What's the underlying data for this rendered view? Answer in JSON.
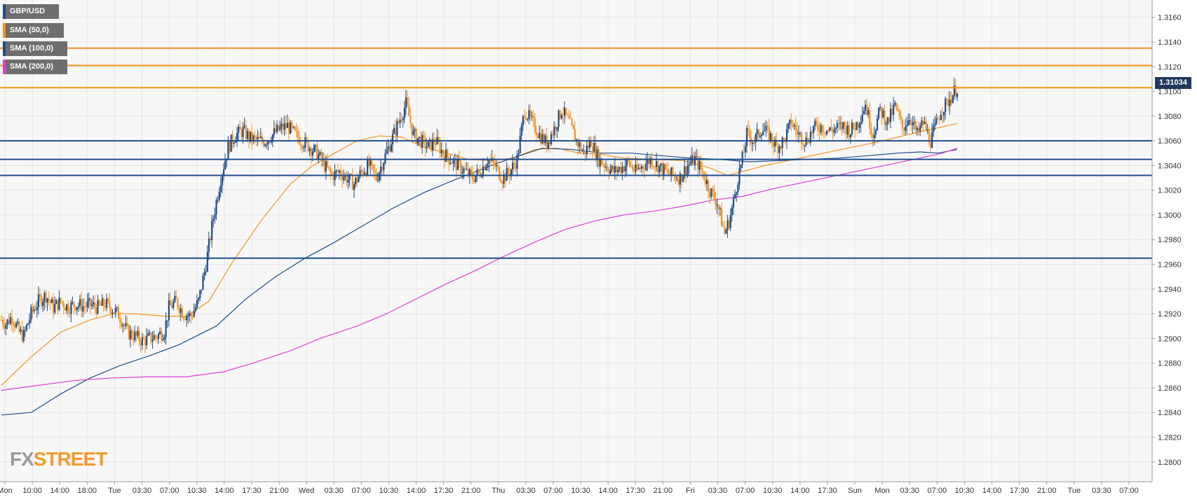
{
  "legend": [
    {
      "label": "GBP/USD",
      "color": "#1f4e8c"
    },
    {
      "label": "SMA (50,0)",
      "color": "#f7931e"
    },
    {
      "label": "SMA (100,0)",
      "color": "#1f4e8c"
    },
    {
      "label": "SMA (200,0)",
      "color": "#e23bdc"
    }
  ],
  "price_tag": "1.31034",
  "logo": {
    "fx": "FX",
    "street": "STREET"
  },
  "chart_data": {
    "type": "candlestick",
    "symbol": "GBP/USD",
    "ylim": [
      1.2784,
      1.3174
    ],
    "yticks": [
      "1.3160",
      "1.3140",
      "1.3120",
      "1.3100",
      "1.3080",
      "1.3060",
      "1.3040",
      "1.3020",
      "1.3000",
      "1.2980",
      "1.2960",
      "1.2940",
      "1.2920",
      "1.2900",
      "1.2880",
      "1.2860",
      "1.2840",
      "1.2820",
      "1.2800"
    ],
    "xticks": [
      "Mon",
      "10:00",
      "14:00",
      "18:00",
      "Tue",
      "03:30",
      "07:00",
      "10:30",
      "14:00",
      "17:30",
      "21:00",
      "Wed",
      "03:30",
      "07:00",
      "10:30",
      "14:00",
      "17:30",
      "21:00",
      "Thu",
      "03:30",
      "07:00",
      "10:30",
      "14:00",
      "17:30",
      "21:00",
      "Fri",
      "03:30",
      "07:00",
      "10:30",
      "14:00",
      "17:30",
      "Sun",
      "Mon",
      "03:30",
      "07:00",
      "10:30",
      "14:00",
      "17:30",
      "21:00",
      "Tue",
      "03:30",
      "07:00"
    ],
    "grid": true,
    "last_price": 1.31034,
    "horizontal_levels": [
      {
        "value": 1.3135,
        "color": "#f7931e"
      },
      {
        "value": 1.3121,
        "color": "#f7931e"
      },
      {
        "value": 1.3103,
        "color": "#f7931e"
      },
      {
        "value": 1.306,
        "color": "#1f4e8c"
      },
      {
        "value": 1.3045,
        "color": "#1f4e8c"
      },
      {
        "value": 1.3032,
        "color": "#1f4e8c"
      },
      {
        "value": 1.2965,
        "color": "#1f4e8c"
      }
    ],
    "close_path": [
      [
        0,
        1.2915
      ],
      [
        3,
        1.2912
      ],
      [
        7,
        1.2918
      ],
      [
        12,
        1.2905
      ],
      [
        15,
        1.2902
      ],
      [
        20,
        1.292
      ],
      [
        25,
        1.293
      ],
      [
        30,
        1.2935
      ],
      [
        35,
        1.2925
      ],
      [
        40,
        1.293
      ],
      [
        45,
        1.2925
      ],
      [
        50,
        1.2928
      ],
      [
        55,
        1.2926
      ],
      [
        60,
        1.2927
      ],
      [
        65,
        1.2925
      ],
      [
        70,
        1.2928
      ],
      [
        75,
        1.2924
      ],
      [
        80,
        1.2918
      ],
      [
        85,
        1.2905
      ],
      [
        90,
        1.2902
      ],
      [
        95,
        1.2898
      ],
      [
        100,
        1.29
      ],
      [
        105,
        1.2902
      ],
      [
        110,
        1.2906
      ],
      [
        113,
        1.2925
      ],
      [
        118,
        1.293
      ],
      [
        123,
        1.292
      ],
      [
        128,
        1.2918
      ],
      [
        133,
        1.293
      ],
      [
        138,
        1.296
      ],
      [
        143,
        1.2998
      ],
      [
        148,
        1.303
      ],
      [
        153,
        1.3055
      ],
      [
        158,
        1.3065
      ],
      [
        163,
        1.3068
      ],
      [
        168,
        1.3062
      ],
      [
        173,
        1.306
      ],
      [
        178,
        1.306
      ],
      [
        183,
        1.3065
      ],
      [
        188,
        1.307
      ],
      [
        193,
        1.3072
      ],
      [
        198,
        1.3065
      ],
      [
        203,
        1.306
      ],
      [
        208,
        1.3055
      ],
      [
        213,
        1.305
      ],
      [
        218,
        1.304
      ],
      [
        223,
        1.3032
      ],
      [
        228,
        1.3035
      ],
      [
        233,
        1.303
      ],
      [
        238,
        1.3025
      ],
      [
        243,
        1.3035
      ],
      [
        248,
        1.304
      ],
      [
        253,
        1.303
      ],
      [
        258,
        1.3045
      ],
      [
        263,
        1.306
      ],
      [
        268,
        1.3075
      ],
      [
        273,
        1.309
      ],
      [
        278,
        1.3065
      ],
      [
        283,
        1.306
      ],
      [
        288,
        1.3055
      ],
      [
        293,
        1.306
      ],
      [
        298,
        1.305
      ],
      [
        303,
        1.3045
      ],
      [
        308,
        1.304
      ],
      [
        313,
        1.3035
      ],
      [
        318,
        1.303
      ],
      [
        323,
        1.3035
      ],
      [
        328,
        1.3045
      ],
      [
        333,
        1.304
      ],
      [
        338,
        1.303
      ],
      [
        343,
        1.3035
      ],
      [
        348,
        1.3045
      ],
      [
        353,
        1.3085
      ],
      [
        358,
        1.3075
      ],
      [
        363,
        1.3065
      ],
      [
        368,
        1.3058
      ],
      [
        373,
        1.307
      ],
      [
        378,
        1.3085
      ],
      [
        383,
        1.3075
      ],
      [
        388,
        1.306
      ],
      [
        393,
        1.305
      ],
      [
        398,
        1.306
      ],
      [
        403,
        1.3045
      ],
      [
        408,
        1.304
      ],
      [
        413,
        1.3035
      ],
      [
        418,
        1.3038
      ],
      [
        423,
        1.3042
      ],
      [
        428,
        1.3035
      ],
      [
        433,
        1.304
      ],
      [
        438,
        1.3045
      ],
      [
        443,
        1.304
      ],
      [
        448,
        1.3035
      ],
      [
        453,
        1.3032
      ],
      [
        458,
        1.303
      ],
      [
        463,
        1.304
      ],
      [
        468,
        1.3045
      ],
      [
        473,
        1.3035
      ],
      [
        478,
        1.302
      ],
      [
        483,
        1.301
      ],
      [
        488,
        1.2985
      ],
      [
        491,
        1.2995
      ],
      [
        494,
        1.301
      ],
      [
        497,
        1.303
      ],
      [
        500,
        1.3045
      ],
      [
        503,
        1.3065
      ],
      [
        508,
        1.306
      ],
      [
        513,
        1.307
      ],
      [
        518,
        1.3065
      ],
      [
        523,
        1.3055
      ],
      [
        528,
        1.306
      ],
      [
        533,
        1.3075
      ],
      [
        538,
        1.3065
      ],
      [
        543,
        1.306
      ],
      [
        548,
        1.307
      ],
      [
        553,
        1.3072
      ],
      [
        558,
        1.3068
      ],
      [
        563,
        1.307
      ],
      [
        568,
        1.3072
      ],
      [
        573,
        1.3068
      ],
      [
        578,
        1.3075
      ],
      [
        583,
        1.309
      ],
      [
        588,
        1.3065
      ],
      [
        593,
        1.3085
      ],
      [
        598,
        1.3075
      ],
      [
        603,
        1.3088
      ],
      [
        608,
        1.307
      ],
      [
        613,
        1.308
      ],
      [
        618,
        1.3065
      ],
      [
        622,
        1.3075
      ],
      [
        627,
        1.306
      ],
      [
        630,
        1.307
      ],
      [
        634,
        1.3085
      ],
      [
        638,
        1.309
      ],
      [
        642,
        1.3098
      ],
      [
        645,
        1.3103
      ]
    ],
    "series": [
      {
        "name": "SMA (50,0)",
        "color": "#f7931e",
        "points": [
          [
            0,
            1.2862
          ],
          [
            20,
            1.2885
          ],
          [
            40,
            1.2905
          ],
          [
            60,
            1.2915
          ],
          [
            75,
            1.292
          ],
          [
            90,
            1.292
          ],
          [
            110,
            1.2918
          ],
          [
            125,
            1.2918
          ],
          [
            140,
            1.293
          ],
          [
            155,
            1.296
          ],
          [
            175,
            1.2995
          ],
          [
            195,
            1.3025
          ],
          [
            210,
            1.304
          ],
          [
            225,
            1.305
          ],
          [
            240,
            1.306
          ],
          [
            255,
            1.3064
          ],
          [
            270,
            1.3063
          ],
          [
            285,
            1.3055
          ],
          [
            300,
            1.305
          ],
          [
            315,
            1.3045
          ],
          [
            330,
            1.3044
          ],
          [
            345,
            1.3046
          ],
          [
            360,
            1.3053
          ],
          [
            375,
            1.3054
          ],
          [
            390,
            1.305
          ],
          [
            405,
            1.3049
          ],
          [
            420,
            1.3046
          ],
          [
            440,
            1.3045
          ],
          [
            460,
            1.3044
          ],
          [
            478,
            1.3038
          ],
          [
            490,
            1.3032
          ],
          [
            500,
            1.3035
          ],
          [
            515,
            1.304
          ],
          [
            535,
            1.3045
          ],
          [
            555,
            1.305
          ],
          [
            575,
            1.3055
          ],
          [
            595,
            1.306
          ],
          [
            615,
            1.3066
          ],
          [
            630,
            1.307
          ],
          [
            645,
            1.3074
          ]
        ]
      },
      {
        "name": "SMA (100,0)",
        "color": "#1f4e8c",
        "points": [
          [
            0,
            1.2838
          ],
          [
            20,
            1.284
          ],
          [
            40,
            1.2855
          ],
          [
            60,
            1.2868
          ],
          [
            80,
            1.2878
          ],
          [
            100,
            1.2886
          ],
          [
            120,
            1.2895
          ],
          [
            145,
            1.291
          ],
          [
            165,
            1.2932
          ],
          [
            185,
            1.295
          ],
          [
            205,
            1.2965
          ],
          [
            225,
            1.2978
          ],
          [
            245,
            1.2992
          ],
          [
            265,
            1.3006
          ],
          [
            285,
            1.3018
          ],
          [
            305,
            1.3028
          ],
          [
            320,
            1.3035
          ],
          [
            335,
            1.3042
          ],
          [
            350,
            1.3048
          ],
          [
            365,
            1.3054
          ],
          [
            385,
            1.3053
          ],
          [
            405,
            1.305
          ],
          [
            425,
            1.305
          ],
          [
            445,
            1.3048
          ],
          [
            465,
            1.3046
          ],
          [
            485,
            1.3045
          ],
          [
            505,
            1.3043
          ],
          [
            525,
            1.3044
          ],
          [
            545,
            1.3045
          ],
          [
            565,
            1.3046
          ],
          [
            585,
            1.3048
          ],
          [
            605,
            1.305
          ],
          [
            620,
            1.3051
          ],
          [
            632,
            1.305
          ],
          [
            645,
            1.3053
          ]
        ]
      },
      {
        "name": "SMA (200,0)",
        "color": "#e23bdc",
        "points": [
          [
            0,
            1.2858
          ],
          [
            25,
            1.2862
          ],
          [
            50,
            1.2866
          ],
          [
            75,
            1.2868
          ],
          [
            100,
            1.2869
          ],
          [
            125,
            1.2869
          ],
          [
            150,
            1.2873
          ],
          [
            170,
            1.288
          ],
          [
            195,
            1.289
          ],
          [
            215,
            1.29
          ],
          [
            240,
            1.291
          ],
          [
            260,
            1.292
          ],
          [
            280,
            1.2932
          ],
          [
            300,
            1.2944
          ],
          [
            320,
            1.2955
          ],
          [
            340,
            1.2967
          ],
          [
            360,
            1.2978
          ],
          [
            380,
            1.2988
          ],
          [
            400,
            1.2995
          ],
          [
            420,
            1.3
          ],
          [
            440,
            1.3003
          ],
          [
            460,
            1.3007
          ],
          [
            480,
            1.3012
          ],
          [
            500,
            1.3015
          ],
          [
            520,
            1.3021
          ],
          [
            540,
            1.3026
          ],
          [
            560,
            1.3031
          ],
          [
            580,
            1.3036
          ],
          [
            600,
            1.3041
          ],
          [
            620,
            1.3046
          ],
          [
            635,
            1.305
          ],
          [
            645,
            1.3054
          ]
        ]
      }
    ]
  },
  "colors": {
    "bull": "#1f4e8c",
    "bear": "#f7931e",
    "grid": "#e6e6e6",
    "background": "#f7f7f7",
    "axis_text": "#333333"
  }
}
